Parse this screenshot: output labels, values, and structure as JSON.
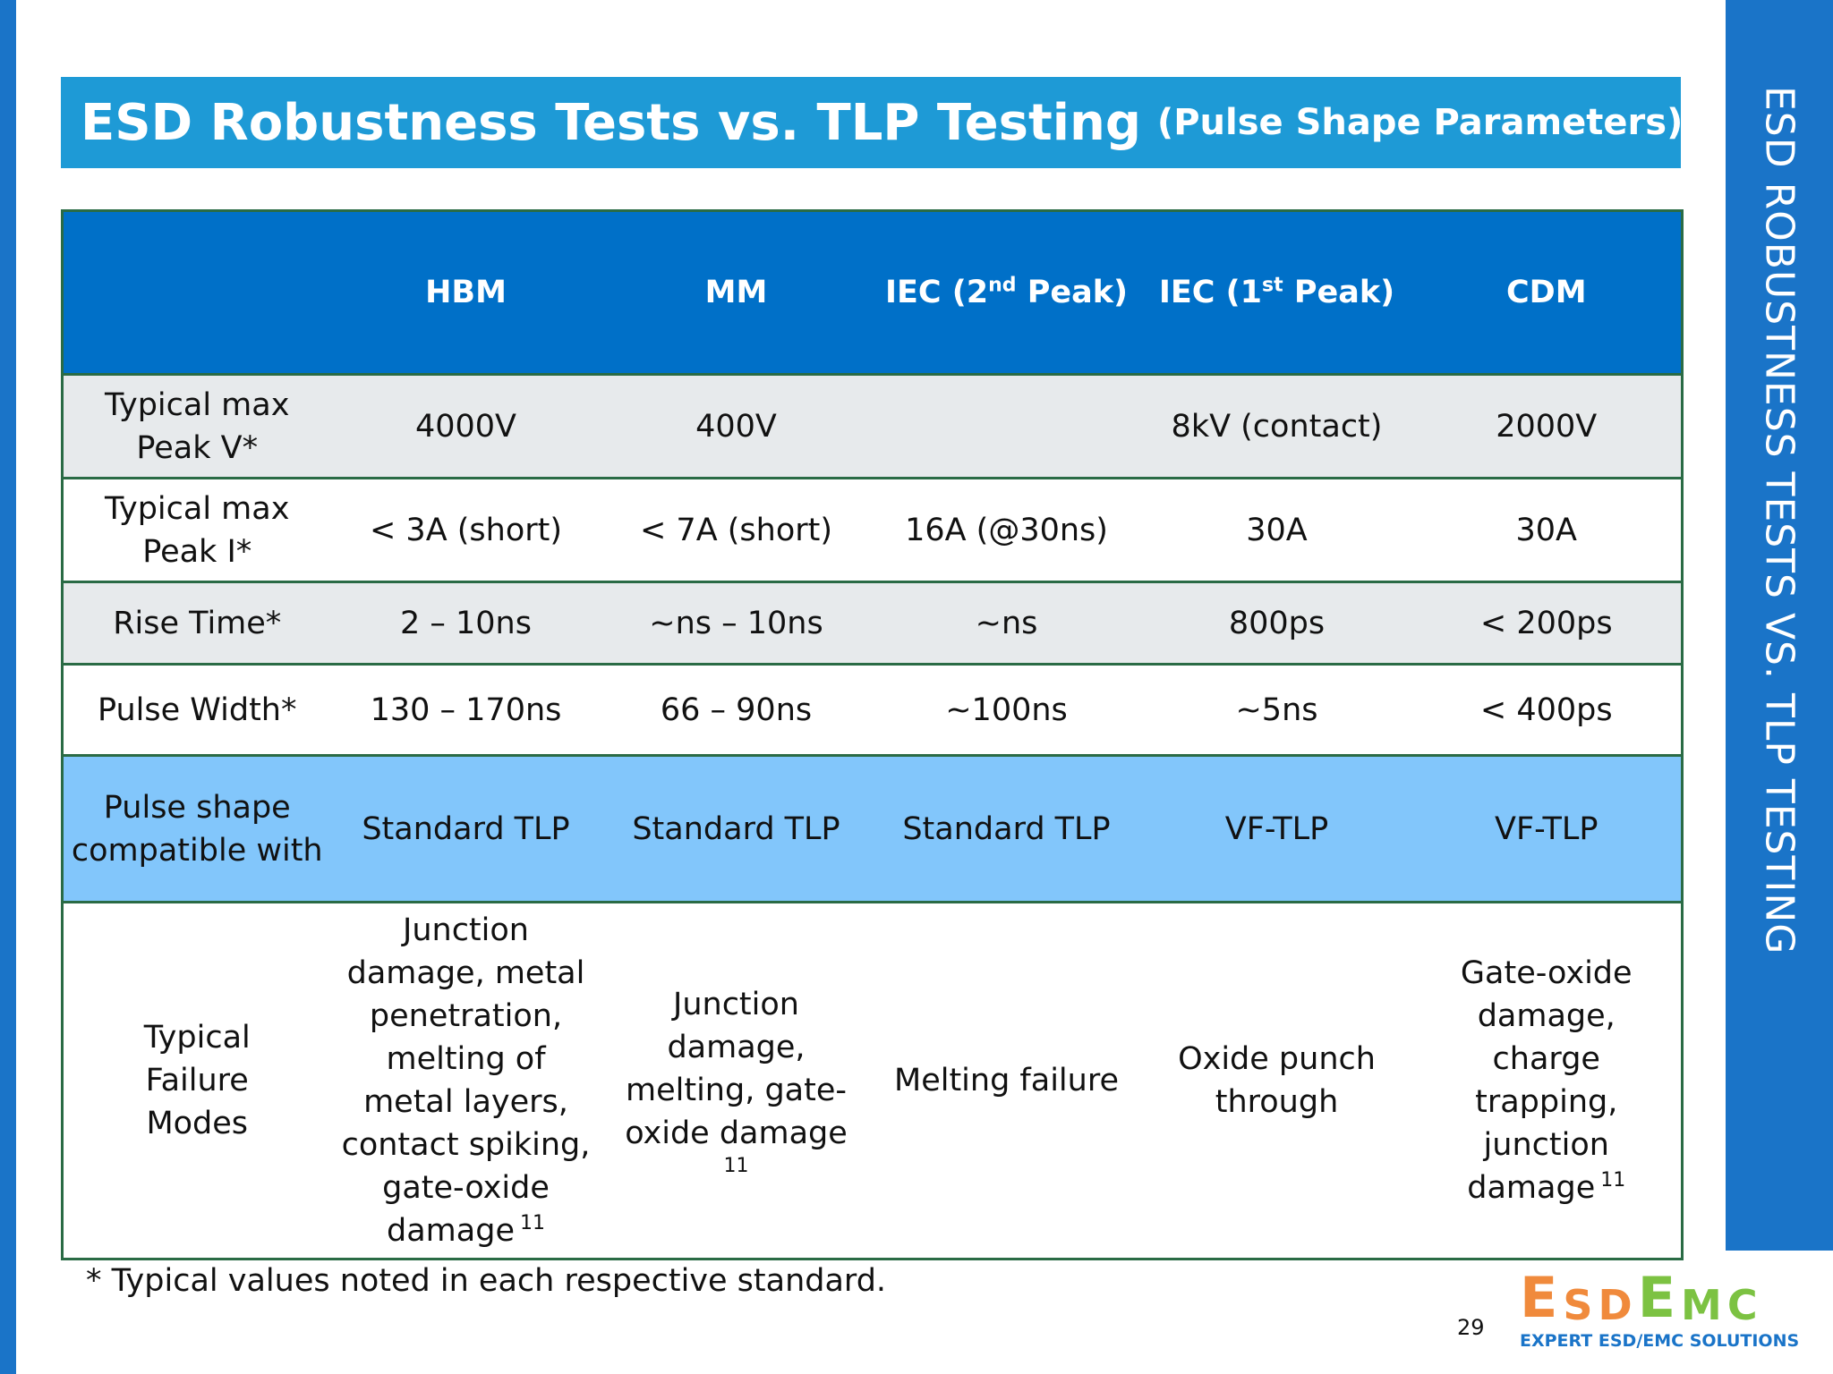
{
  "side_title": "ESD ROBUSTNESS TESTS VS. TLP TESTING",
  "title": {
    "main": "ESD Robustness Tests vs. TLP Testing",
    "sub": "(Pulse Shape Parameters)"
  },
  "table": {
    "headers": [
      {
        "text": ""
      },
      {
        "text": "HBM"
      },
      {
        "text": "MM"
      },
      {
        "pre": "IEC (2",
        "sup": "nd",
        "post": " Peak)"
      },
      {
        "pre": "IEC (1",
        "sup": "st",
        "post": " Peak)"
      },
      {
        "text": "CDM"
      }
    ],
    "rows": [
      {
        "label": "Typical max Peak V*",
        "cells": [
          "4000V",
          "400V",
          "",
          "8kV (contact)",
          "2000V"
        ]
      },
      {
        "label": "Typical max Peak I*",
        "cells": [
          "< 3A (short)",
          "< 7A (short)",
          "16A (@30ns)",
          "30A",
          "30A"
        ]
      },
      {
        "label": "Rise Time*",
        "cells": [
          "2 – 10ns",
          "~ns – 10ns",
          "~ns",
          "800ps",
          "< 200ps"
        ]
      },
      {
        "label": "Pulse Width*",
        "cells": [
          "130 – 170ns",
          "66 – 90ns",
          "~100ns",
          "~5ns",
          "< 400ps"
        ]
      },
      {
        "label": "Pulse shape compatible with",
        "cells": [
          "Standard TLP",
          "Standard TLP",
          "Standard TLP",
          "VF-TLP",
          "VF-TLP"
        ]
      }
    ],
    "failure_row": {
      "label": "Typical Failure Modes",
      "hbm": "Junction damage, metal penetration, melting of metal layers, contact spiking, gate-oxide damage",
      "hbm_ref": "11",
      "mm": "Junction damage, melting, gate-oxide damage",
      "mm_ref": "11",
      "iec2": "Melting failure",
      "iec1": "Oxide punch through",
      "cdm": "Gate-oxide damage, charge trapping, junction damage",
      "cdm_ref": "11"
    }
  },
  "footnote": "* Typical values noted in each respective standard.",
  "page_number": "29",
  "logo": {
    "letters": [
      {
        "ch": "E",
        "size": "big",
        "color": "#f08a3c"
      },
      {
        "ch": "S",
        "size": "small",
        "color": "#f08a3c"
      },
      {
        "ch": "D",
        "size": "small",
        "color": "#f08a3c"
      },
      {
        "ch": "E",
        "size": "big",
        "color": "#7cc242"
      },
      {
        "ch": "M",
        "size": "small",
        "color": "#7cc242"
      },
      {
        "ch": "C",
        "size": "small",
        "color": "#7cc242"
      }
    ],
    "tagline": "EXPERT ESD/EMC SOLUTIONS"
  },
  "colors": {
    "accent_blue": "#1a74c8",
    "title_band": "#1e9ad6",
    "header_row": "#0070c8",
    "highlight_row": "#82c6fb",
    "grey_row": "#e7eaec",
    "border_green": "#2a6b45"
  }
}
